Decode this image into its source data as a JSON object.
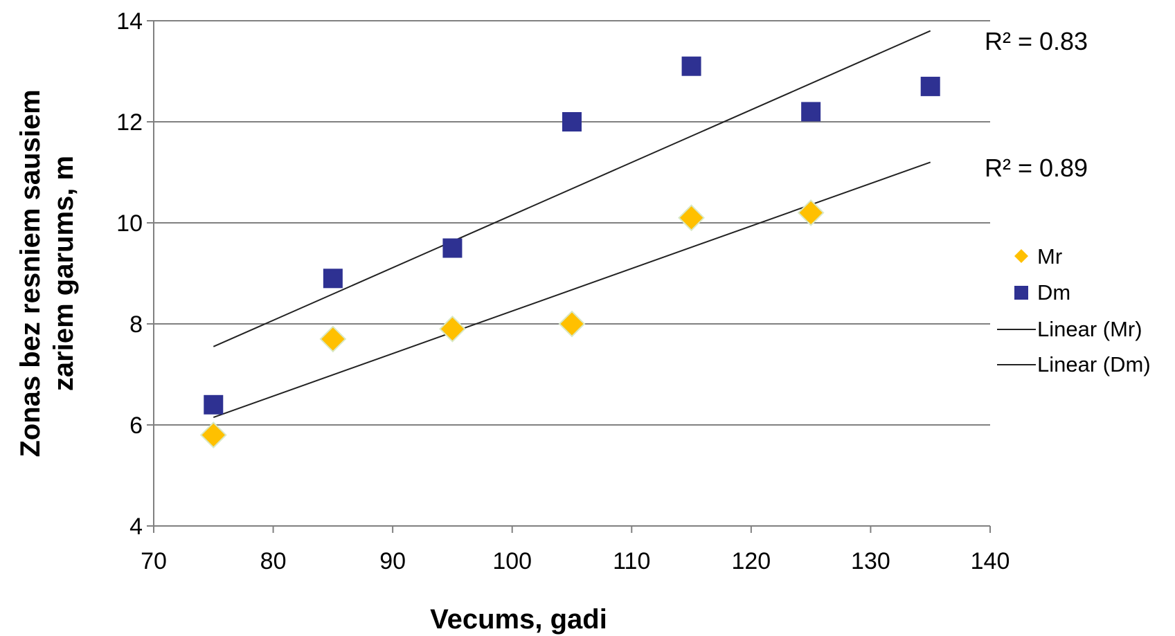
{
  "chart_data": {
    "type": "scatter",
    "xlabel": "Vecums, gadi",
    "ylabel_lines": [
      "Zonas bez resniem sausiem",
      "zariem garums, m"
    ],
    "xlim": [
      70,
      140
    ],
    "ylim": [
      4,
      14
    ],
    "xticks": [
      "70",
      "80",
      "90",
      "100",
      "110",
      "120",
      "130",
      "140"
    ],
    "yticks": [
      "4",
      "6",
      "8",
      "10",
      "12",
      "14"
    ],
    "grid": "horizontal",
    "legend_position": "right",
    "series": [
      {
        "name": "Mr",
        "marker": "diamond",
        "color": "#FFC000",
        "x": [
          75,
          85,
          95,
          105,
          115,
          125
        ],
        "y": [
          5.8,
          7.7,
          7.9,
          8.0,
          10.1,
          10.2
        ]
      },
      {
        "name": "Dm",
        "marker": "square",
        "color": "#2E3192",
        "x": [
          75,
          85,
          95,
          105,
          115,
          125,
          135
        ],
        "y": [
          6.4,
          8.9,
          9.5,
          12.0,
          13.1,
          12.2,
          12.7
        ]
      }
    ],
    "trendlines": [
      {
        "name": "Linear (Mr)",
        "x": [
          75,
          135
        ],
        "y": [
          6.15,
          11.2
        ],
        "r2_label": "R² = 0.89"
      },
      {
        "name": "Linear (Dm)",
        "x": [
          75,
          135
        ],
        "y": [
          7.55,
          13.8
        ],
        "r2_label": "R² = 0.83"
      }
    ]
  }
}
